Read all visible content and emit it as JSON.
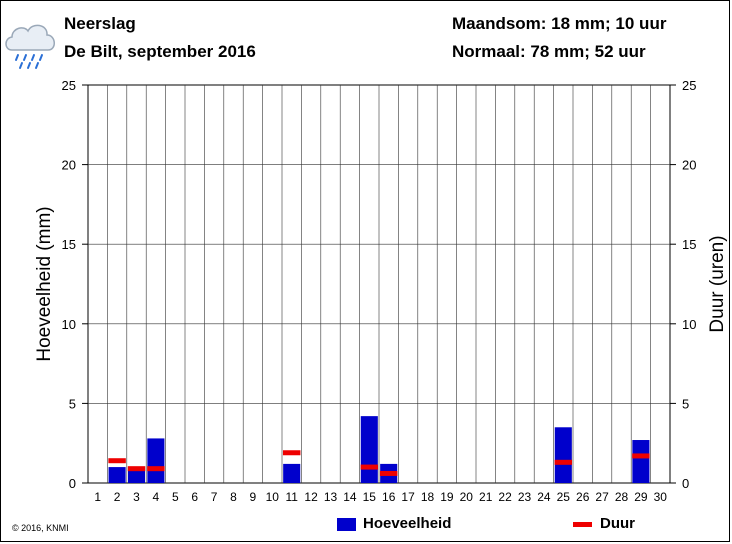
{
  "header": {
    "title": "Neerslag",
    "subtitle": "De Bilt, september 2016",
    "month_sum": "Maandsom: 18 mm; 10 uur",
    "normal": "Normaal: 78 mm; 52 uur"
  },
  "icon": "rain-cloud-icon",
  "copyright": "© 2016, KNMI",
  "chart_data": {
    "type": "bar",
    "x": [
      1,
      2,
      3,
      4,
      5,
      6,
      7,
      8,
      9,
      10,
      11,
      12,
      13,
      14,
      15,
      16,
      17,
      18,
      19,
      20,
      21,
      22,
      23,
      24,
      25,
      26,
      27,
      28,
      29,
      30
    ],
    "ylabel": "Hoeveelheid (mm)",
    "y2label": "Duur (uren)",
    "ylim": [
      0,
      25
    ],
    "y2lim": [
      0,
      25
    ],
    "yticks": [
      0,
      5,
      10,
      15,
      20,
      25
    ],
    "grid": true,
    "series": [
      {
        "name": "Hoeveelheid",
        "color": "#0000cc",
        "values": [
          0,
          1.0,
          0.9,
          2.8,
          0,
          0,
          0,
          0,
          0,
          0,
          1.2,
          0,
          0,
          0,
          4.2,
          1.2,
          0,
          0,
          0,
          0,
          0,
          0,
          0,
          0,
          3.5,
          0,
          0,
          0,
          2.7,
          0
        ]
      },
      {
        "name": "Duur",
        "color": "#ee0000",
        "values": [
          0,
          1.4,
          0.9,
          0.9,
          0,
          0,
          0,
          0,
          0,
          0,
          1.9,
          0,
          0,
          0,
          1.0,
          0.6,
          0,
          0,
          0,
          0,
          0,
          0,
          0,
          0,
          1.3,
          0,
          0,
          0,
          1.7,
          0
        ]
      }
    ]
  }
}
